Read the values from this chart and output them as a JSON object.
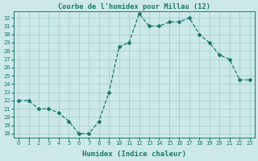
{
  "title": "Courbe de l'humidex pour Millau (12)",
  "xlabel": "Humidex (Indice chaleur)",
  "x": [
    0,
    1,
    2,
    3,
    4,
    5,
    6,
    7,
    8,
    9,
    10,
    11,
    12,
    13,
    14,
    15,
    16,
    17,
    18,
    19,
    20,
    21,
    22,
    23
  ],
  "y": [
    22,
    22,
    21,
    21,
    20.5,
    19.5,
    18,
    18,
    19.5,
    23,
    28.5,
    29,
    32.5,
    31,
    31,
    31.5,
    31.5,
    32,
    30,
    29,
    27.5,
    27,
    24.5,
    24.5
  ],
  "line_color": "#1a7a6e",
  "marker": "D",
  "marker_size": 2.0,
  "ylim_min": 17.5,
  "ylim_max": 32.8,
  "xlim_min": -0.5,
  "xlim_max": 23.5,
  "yticks": [
    18,
    19,
    20,
    21,
    22,
    23,
    24,
    25,
    26,
    27,
    28,
    29,
    30,
    31,
    32
  ],
  "xticks": [
    0,
    1,
    2,
    3,
    4,
    5,
    6,
    7,
    8,
    9,
    10,
    11,
    12,
    13,
    14,
    15,
    16,
    17,
    18,
    19,
    20,
    21,
    22,
    23
  ],
  "bg_color": "#cce8e8",
  "grid_color": "#a0cccc",
  "tick_color": "#1a7a6e",
  "label_color": "#1a7a6e",
  "title_color": "#1a7a6e",
  "tick_fontsize": 5.0,
  "xlabel_fontsize": 6.5,
  "title_fontsize": 6.2,
  "linewidth": 0.9
}
